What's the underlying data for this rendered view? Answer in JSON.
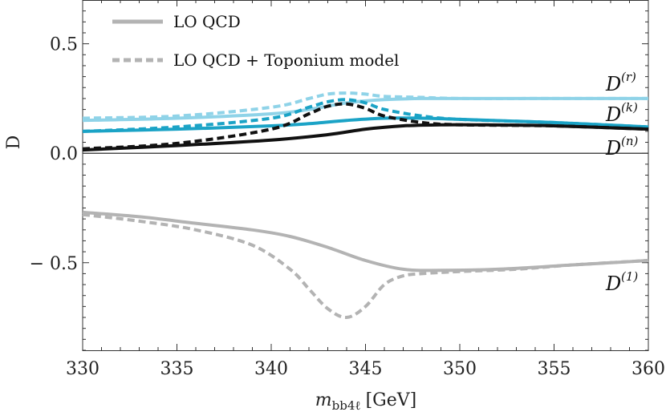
{
  "chart_data": {
    "type": "line",
    "xlabel": "m",
    "xlabel_sub": "bb4ℓ",
    "xlabel_unit": "[GeV]",
    "ylabel": "D",
    "xlim": [
      330,
      360
    ],
    "ylim": [
      -0.9,
      0.7
    ],
    "xticks": [
      330,
      335,
      340,
      345,
      350,
      355,
      360
    ],
    "xtick_labels": [
      "330",
      "335",
      "340",
      "345",
      "350",
      "355",
      "360"
    ],
    "yticks": [
      0.5,
      0.0,
      -0.5
    ],
    "ytick_labels": [
      "0.5",
      "0.0",
      "− 0.5"
    ],
    "grid": false,
    "zero_line": true,
    "legend": {
      "position": "top-left",
      "entries": [
        {
          "label": "LO QCD",
          "style": "solid",
          "color": "#b3b3b3"
        },
        {
          "label": "LO QCD + Toponium model",
          "style": "dashed",
          "color": "#b3b3b3"
        }
      ]
    },
    "series": [
      {
        "name": "D(r)",
        "label_main": "D",
        "label_sup": "(r)",
        "color": "#8fd3e8",
        "curves": {
          "solid": {
            "x": [
              330,
              335,
              340,
              342,
              344,
              346,
              348,
              350,
              355,
              360
            ],
            "y": [
              0.15,
              0.16,
              0.18,
              0.2,
              0.23,
              0.245,
              0.25,
              0.25,
              0.25,
              0.25
            ]
          },
          "dashed": {
            "x": [
              330,
              335,
              340,
              342,
              343,
              344,
              345,
              346,
              348,
              350,
              355,
              360
            ],
            "y": [
              0.16,
              0.17,
              0.21,
              0.25,
              0.27,
              0.275,
              0.27,
              0.26,
              0.255,
              0.25,
              0.25,
              0.25
            ]
          }
        }
      },
      {
        "name": "D(k)",
        "label_main": "D",
        "label_sup": "(k)",
        "color": "#1ba3c6",
        "curves": {
          "solid": {
            "x": [
              330,
              335,
              340,
              342,
              344,
              346,
              348,
              350,
              355,
              360
            ],
            "y": [
              0.1,
              0.11,
              0.125,
              0.135,
              0.15,
              0.16,
              0.16,
              0.155,
              0.14,
              0.12
            ]
          },
          "dashed": {
            "x": [
              330,
              335,
              340,
              342,
              343,
              344,
              345,
              346,
              348,
              350,
              355,
              360
            ],
            "y": [
              0.1,
              0.12,
              0.16,
              0.21,
              0.235,
              0.245,
              0.23,
              0.2,
              0.17,
              0.155,
              0.14,
              0.12
            ]
          }
        }
      },
      {
        "name": "D(n)",
        "label_main": "D",
        "label_sup": "(n)",
        "color": "#111111",
        "curves": {
          "solid": {
            "x": [
              330,
              335,
              340,
              343,
              345,
              347,
              349,
              351,
              355,
              360
            ],
            "y": [
              0.015,
              0.035,
              0.06,
              0.085,
              0.11,
              0.125,
              0.13,
              0.13,
              0.125,
              0.11
            ]
          },
          "dashed": {
            "x": [
              330,
              335,
              340,
              342,
              343,
              344,
              345,
              346,
              348,
              350,
              355,
              360
            ],
            "y": [
              0.02,
              0.045,
              0.11,
              0.18,
              0.215,
              0.225,
              0.205,
              0.17,
              0.14,
              0.13,
              0.125,
              0.11
            ]
          }
        }
      },
      {
        "name": "D(1)",
        "label_main": "D",
        "label_sup": "(1)",
        "color": "#b3b3b3",
        "curves": {
          "solid": {
            "x": [
              330,
              333,
              336,
              339,
              341,
              343,
              345,
              347,
              349,
              352,
              356,
              360
            ],
            "y": [
              -0.27,
              -0.29,
              -0.32,
              -0.35,
              -0.38,
              -0.43,
              -0.49,
              -0.53,
              -0.535,
              -0.53,
              -0.51,
              -0.49
            ]
          },
          "dashed": {
            "x": [
              330,
              333,
              336,
              339,
              341,
              342,
              343,
              344,
              345,
              346,
              347,
              348,
              350,
              353,
              356,
              360
            ],
            "y": [
              -0.28,
              -0.31,
              -0.35,
              -0.42,
              -0.53,
              -0.62,
              -0.71,
              -0.75,
              -0.7,
              -0.6,
              -0.56,
              -0.55,
              -0.54,
              -0.53,
              -0.51,
              -0.49
            ]
          }
        }
      }
    ]
  }
}
